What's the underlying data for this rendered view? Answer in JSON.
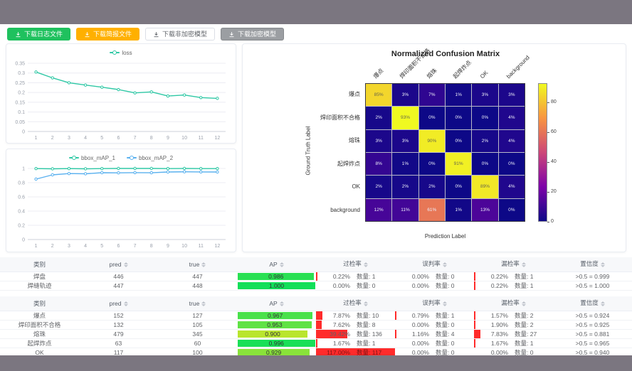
{
  "toolbar": {
    "buttons": [
      {
        "label": "下载日志文件",
        "style": "green",
        "bg": "#1fc15e",
        "fg": "#ffffff"
      },
      {
        "label": "下载简报文件",
        "style": "orange",
        "bg": "#ffb000",
        "fg": "#ffffff"
      },
      {
        "label": "下载非加密模型",
        "style": "plain",
        "bg": "#ffffff",
        "fg": "#5f6368"
      },
      {
        "label": "下载加密模型",
        "style": "gray",
        "bg": "#9b9ea2",
        "fg": "#ffffff"
      }
    ]
  },
  "chart_data": [
    {
      "id": "loss",
      "type": "line",
      "x": [
        1,
        2,
        3,
        4,
        5,
        6,
        7,
        8,
        9,
        10,
        11,
        12
      ],
      "series": [
        {
          "name": "loss",
          "color": "#2fc8a5",
          "values": [
            0.305,
            0.275,
            0.25,
            0.238,
            0.227,
            0.215,
            0.198,
            0.203,
            0.182,
            0.187,
            0.174,
            0.17
          ]
        }
      ],
      "ylim": [
        0,
        0.35
      ],
      "yticks": [
        0,
        0.05,
        0.1,
        0.15,
        0.2,
        0.25,
        0.3,
        0.35
      ],
      "legend_position": "top",
      "grid": true
    },
    {
      "id": "bbox_map",
      "type": "line",
      "x": [
        1,
        2,
        3,
        4,
        5,
        6,
        7,
        8,
        9,
        10,
        11,
        12
      ],
      "series": [
        {
          "name": "bbox_mAP_1",
          "color": "#2fc8a5",
          "values": [
            0.998,
            0.995,
            0.998,
            0.995,
            0.998,
            1.0,
            1.0,
            1.0,
            0.998,
            1.0,
            0.998,
            0.998
          ]
        },
        {
          "name": "bbox_mAP_2",
          "color": "#5ab1ef",
          "values": [
            0.85,
            0.91,
            0.928,
            0.925,
            0.94,
            0.938,
            0.941,
            0.939,
            0.95,
            0.953,
            0.951,
            0.95
          ]
        }
      ],
      "ylim": [
        0,
        1
      ],
      "yticks": [
        0,
        0.2,
        0.4,
        0.6,
        0.8,
        1
      ],
      "legend_position": "top",
      "grid": true
    },
    {
      "id": "confusion_matrix",
      "type": "heatmap",
      "title": "Normalized Confusion Matrix",
      "xlabel": "Prediction Label",
      "ylabel": "Ground Truth Label",
      "labels": [
        "爆点",
        "焊印面积不合格",
        "熔珠",
        "起焊炸点",
        "OK",
        "background"
      ],
      "matrix_percent": [
        [
          85,
          3,
          7,
          1,
          3,
          3
        ],
        [
          2,
          93,
          0,
          0,
          0,
          4
        ],
        [
          3,
          3,
          90,
          0,
          2,
          4
        ],
        [
          8,
          1,
          0,
          91,
          0,
          0
        ],
        [
          2,
          2,
          2,
          0,
          89,
          4
        ],
        [
          12,
          11,
          61,
          1,
          13,
          0
        ]
      ],
      "vmin": 0,
      "vmax": 93,
      "colorbar_ticks": [
        0,
        20,
        40,
        60,
        80
      ],
      "colormap": "plasma"
    }
  ],
  "tables": [
    {
      "headers": [
        "类别",
        "pred",
        "true",
        "AP",
        "过检率",
        "误判率",
        "漏检率",
        "置信度"
      ],
      "rows": [
        {
          "label": "焊盘",
          "pred": "446",
          "true": "447",
          "ap": "0.986",
          "ap_value": 0.986,
          "over_pct": "0.22%",
          "over_val": 0.22,
          "over_count": "数量: 1",
          "mis_pct": "0.00%",
          "mis_val": 0,
          "mis_count": "数量: 0",
          "miss_pct": "0.22%",
          "miss_val": 0.22,
          "miss_count": "数量: 1",
          "confidence": ">0.5 = 0.999"
        },
        {
          "label": "焊缝轨迹",
          "pred": "447",
          "true": "448",
          "ap": "1.000",
          "ap_value": 1.0,
          "over_pct": "0.00%",
          "over_val": 0,
          "over_count": "数量: 0",
          "mis_pct": "0.00%",
          "mis_val": 0,
          "mis_count": "数量: 0",
          "miss_pct": "0.22%",
          "miss_val": 0.22,
          "miss_count": "数量: 1",
          "confidence": ">0.5 = 1.000"
        }
      ]
    },
    {
      "headers": [
        "类别",
        "pred",
        "true",
        "AP",
        "过检率",
        "误判率",
        "漏检率",
        "置信度"
      ],
      "rows": [
        {
          "label": "爆点",
          "pred": "152",
          "true": "127",
          "ap": "0.967",
          "ap_value": 0.967,
          "over_pct": "7.87%",
          "over_val": 7.87,
          "over_count": "数量: 10",
          "mis_pct": "0.79%",
          "mis_val": 0.79,
          "mis_count": "数量: 1",
          "miss_pct": "1.57%",
          "miss_val": 1.57,
          "miss_count": "数量: 2",
          "confidence": ">0.5 = 0.924"
        },
        {
          "label": "焊印面积不合格",
          "pred": "132",
          "true": "105",
          "ap": "0.953",
          "ap_value": 0.953,
          "over_pct": "7.62%",
          "over_val": 7.62,
          "over_count": "数量: 8",
          "mis_pct": "0.00%",
          "mis_val": 0,
          "mis_count": "数量: 0",
          "miss_pct": "1.90%",
          "miss_val": 1.9,
          "miss_count": "数量: 2",
          "confidence": ">0.5 = 0.925"
        },
        {
          "label": "熔珠",
          "pred": "479",
          "true": "345",
          "ap": "0.900",
          "ap_value": 0.9,
          "over_pct": "39.42%",
          "over_val": 39.42,
          "over_count": "数量: 136",
          "mis_pct": "1.16%",
          "mis_val": 1.16,
          "mis_count": "数量: 4",
          "miss_pct": "7.83%",
          "miss_val": 7.83,
          "miss_count": "数量: 27",
          "confidence": ">0.5 = 0.881"
        },
        {
          "label": "起焊炸点",
          "pred": "63",
          "true": "60",
          "ap": "0.996",
          "ap_value": 0.996,
          "over_pct": "1.67%",
          "over_val": 1.67,
          "over_count": "数量: 1",
          "mis_pct": "0.00%",
          "mis_val": 0,
          "mis_count": "数量: 0",
          "miss_pct": "1.67%",
          "miss_val": 1.67,
          "miss_count": "数量: 1",
          "confidence": ">0.5 = 0.965"
        },
        {
          "label": "OK",
          "pred": "117",
          "true": "100",
          "ap": "0.929",
          "ap_value": 0.929,
          "over_pct": "117.00%",
          "over_val": 117,
          "over_count": "数量: 117",
          "mis_pct": "0.00%",
          "mis_val": 0,
          "mis_count": "数量: 0",
          "miss_pct": "0.00%",
          "miss_val": 0,
          "miss_count": "数量: 0",
          "confidence": ">0.5 = 0.940"
        }
      ]
    }
  ]
}
